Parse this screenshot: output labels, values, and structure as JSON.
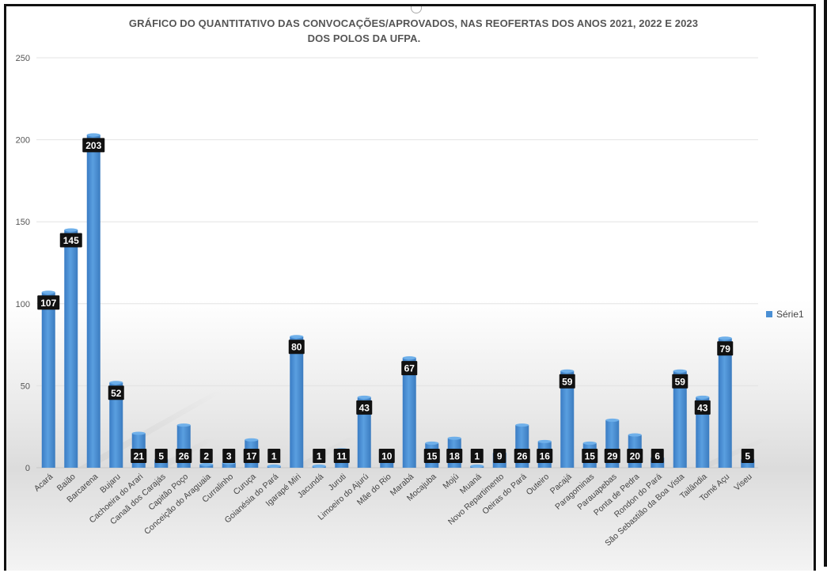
{
  "chart_data": {
    "type": "bar",
    "title_line1": "GRÁFICO DO QUANTITATIVO DAS CONVOCAÇÕES/APROVADOS, NAS REOFERTAS DOS ANOS 2021, 2022 E 2023",
    "title_line2": "DOS POLOS DA UFPA.",
    "categories": [
      "Acará",
      "Baião",
      "Barcarena",
      "Bujaru",
      "Cachoeira do Arari",
      "Canaã dos Carajás",
      "Capitão Poço",
      "Conceição do Araguaia",
      "Curralinho",
      "Curuça",
      "Goianésia do Pará",
      "Igarapé Miri",
      "Jacundá",
      "Juruti",
      "Limoeiro do Ajurú",
      "Mãe do Rio",
      "Marabá",
      "Mocajuba",
      "Mojú",
      "Muaná",
      "Novo Repartimento",
      "Oeiras do Pará",
      "Outeiro",
      "Pacajá",
      "Paragominas",
      "Parauapebas",
      "Ponta de Pedra",
      "Rondon do Pará",
      "São Sebastião da Boa Vista",
      "Tailândia",
      "Tomé Açu",
      "Viseu"
    ],
    "series": [
      {
        "name": "Série1",
        "values": [
          107,
          145,
          203,
          52,
          21,
          5,
          26,
          2,
          3,
          17,
          1,
          80,
          1,
          11,
          43,
          10,
          67,
          15,
          18,
          1,
          9,
          26,
          16,
          59,
          15,
          29,
          20,
          6,
          59,
          43,
          79,
          5
        ]
      }
    ],
    "y_ticks": [
      "0",
      "50",
      "100",
      "150",
      "200",
      "250"
    ],
    "ylim": [
      0,
      250
    ],
    "grid": true,
    "legend_position": "right",
    "colors": {
      "bar": "#4a8fd4",
      "bar_dark": "#3f7fc0",
      "label_bg": "#111111",
      "label_text": "#ffffff"
    }
  }
}
